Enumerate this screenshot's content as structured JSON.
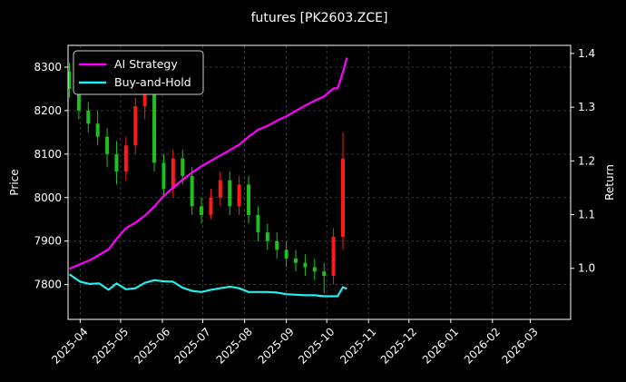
{
  "chart_data": {
    "type": "line",
    "title": "futures [PK2603.ZCE]",
    "ylabel": "Price",
    "y2label": "Return",
    "grid": true,
    "legend_placement": "upper-left",
    "xlim": [
      "2025-03-23",
      "2026-03-31"
    ],
    "ylim": [
      7720,
      8350
    ],
    "y2lim": [
      0.905,
      1.415
    ],
    "x_ticks": [
      "2025-04-01",
      "2025-05-01",
      "2025-06-01",
      "2025-07-01",
      "2025-08-01",
      "2025-09-01",
      "2025-10-01",
      "2025-11-01",
      "2025-12-01",
      "2026-01-01",
      "2026-02-01",
      "2026-03-01"
    ],
    "x_tick_labels": [
      "2025-04",
      "2025-05",
      "2025-06",
      "2025-07",
      "2025-08",
      "2025-09",
      "2025-10",
      "2025-11",
      "2025-12",
      "2026-01",
      "2026-02",
      "2026-03"
    ],
    "y_ticks": [
      7800,
      7900,
      8000,
      8100,
      8200,
      8300
    ],
    "y2_ticks": [
      1.0,
      1.1,
      1.2,
      1.3,
      1.4
    ],
    "y2_tick_labels": [
      "1.0",
      "1.1",
      "1.2",
      "1.3",
      "1.4"
    ],
    "colors": {
      "up": "#ff1a1a",
      "down": "#1fbf1f",
      "ai": "#ff00ff",
      "bh": "#22eeee",
      "grid": "#444444"
    },
    "series": [
      {
        "name": "AI Strategy",
        "axis": "right",
        "color": "#ff00ff",
        "x": [
          "2025-03-24",
          "2025-04-01",
          "2025-04-08",
          "2025-04-15",
          "2025-04-22",
          "2025-04-28",
          "2025-05-05",
          "2025-05-12",
          "2025-05-19",
          "2025-05-26",
          "2025-06-02",
          "2025-06-09",
          "2025-06-16",
          "2025-06-23",
          "2025-06-30",
          "2025-07-07",
          "2025-07-14",
          "2025-07-21",
          "2025-07-28",
          "2025-08-04",
          "2025-08-11",
          "2025-08-18",
          "2025-08-25",
          "2025-09-01",
          "2025-09-08",
          "2025-09-15",
          "2025-09-22",
          "2025-09-29",
          "2025-10-06",
          "2025-10-09",
          "2025-10-13",
          "2025-10-16"
        ],
        "y": [
          0.999,
          1.008,
          1.015,
          1.025,
          1.035,
          1.055,
          1.075,
          1.085,
          1.098,
          1.115,
          1.135,
          1.15,
          1.165,
          1.178,
          1.19,
          1.2,
          1.21,
          1.22,
          1.23,
          1.245,
          1.258,
          1.265,
          1.275,
          1.283,
          1.293,
          1.303,
          1.312,
          1.32,
          1.335,
          1.335,
          1.365,
          1.392
        ]
      },
      {
        "name": "Buy-and-Hold",
        "axis": "right",
        "color": "#22eeee",
        "x": [
          "2025-03-24",
          "2025-04-01",
          "2025-04-08",
          "2025-04-15",
          "2025-04-22",
          "2025-04-28",
          "2025-05-05",
          "2025-05-12",
          "2025-05-19",
          "2025-05-26",
          "2025-06-02",
          "2025-06-09",
          "2025-06-16",
          "2025-06-23",
          "2025-06-30",
          "2025-07-07",
          "2025-07-14",
          "2025-07-21",
          "2025-07-28",
          "2025-08-04",
          "2025-08-11",
          "2025-08-18",
          "2025-08-25",
          "2025-09-01",
          "2025-09-08",
          "2025-09-15",
          "2025-09-22",
          "2025-09-29",
          "2025-10-06",
          "2025-10-09",
          "2025-10-13",
          "2025-10-16"
        ],
        "y": [
          0.989,
          0.975,
          0.971,
          0.972,
          0.96,
          0.972,
          0.961,
          0.963,
          0.973,
          0.978,
          0.976,
          0.975,
          0.964,
          0.958,
          0.956,
          0.96,
          0.963,
          0.966,
          0.963,
          0.956,
          0.956,
          0.956,
          0.955,
          0.952,
          0.951,
          0.95,
          0.95,
          0.948,
          0.948,
          0.948,
          0.965,
          0.962
        ]
      },
      {
        "name": "Price",
        "type": "candlestick",
        "axis": "left",
        "x": [
          "2025-03-24",
          "2025-03-31",
          "2025-04-07",
          "2025-04-14",
          "2025-04-21",
          "2025-04-28",
          "2025-05-05",
          "2025-05-12",
          "2025-05-19",
          "2025-05-26",
          "2025-06-02",
          "2025-06-09",
          "2025-06-16",
          "2025-06-23",
          "2025-06-30",
          "2025-07-07",
          "2025-07-14",
          "2025-07-21",
          "2025-07-28",
          "2025-08-04",
          "2025-08-11",
          "2025-08-18",
          "2025-08-25",
          "2025-09-01",
          "2025-09-08",
          "2025-09-15",
          "2025-09-22",
          "2025-09-29",
          "2025-10-06",
          "2025-10-13"
        ],
        "open": [
          8290,
          8250,
          8200,
          8170,
          8140,
          8100,
          8060,
          8120,
          8210,
          8240,
          8080,
          8020,
          8090,
          8050,
          7980,
          7960,
          8000,
          8040,
          7980,
          8030,
          7960,
          7920,
          7900,
          7880,
          7860,
          7850,
          7840,
          7830,
          7820,
          7910
        ],
        "close": [
          8250,
          8200,
          8170,
          8140,
          8100,
          8060,
          8120,
          8210,
          8240,
          8080,
          8020,
          8090,
          8050,
          7980,
          7960,
          8000,
          8040,
          7980,
          8030,
          7960,
          7920,
          7900,
          7880,
          7860,
          7850,
          7840,
          7830,
          7820,
          7910,
          8090
        ],
        "high": [
          8310,
          8270,
          8220,
          8200,
          8160,
          8130,
          8140,
          8230,
          8270,
          8260,
          8100,
          8110,
          8110,
          8070,
          8000,
          8020,
          8060,
          8060,
          8050,
          8050,
          7980,
          7940,
          7920,
          7900,
          7880,
          7870,
          7860,
          7850,
          7930,
          8150
        ],
        "low": [
          8230,
          8180,
          8150,
          8120,
          8070,
          8030,
          8040,
          8100,
          8180,
          8060,
          8000,
          8000,
          8030,
          7960,
          7940,
          7950,
          7980,
          7960,
          7960,
          7940,
          7900,
          7880,
          7860,
          7840,
          7830,
          7820,
          7810,
          7780,
          7800,
          7880
        ]
      }
    ]
  }
}
